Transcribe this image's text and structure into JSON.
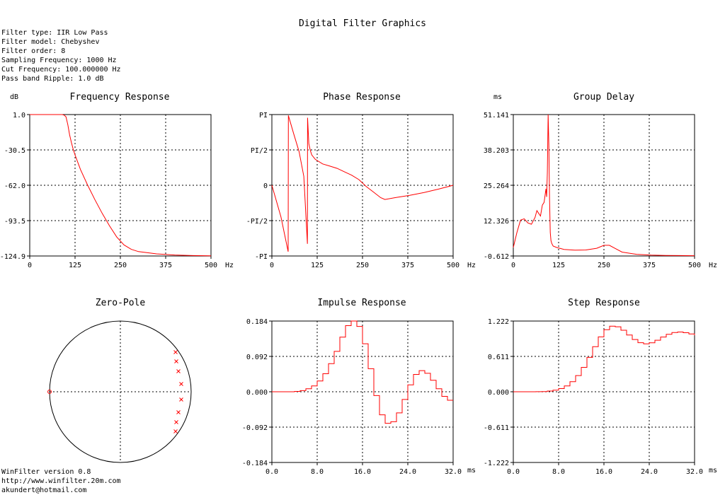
{
  "app": {
    "title": "Digital Filter Graphics",
    "info_lines": [
      "Filter type: IIR Low Pass",
      "Filter model: Chebyshev",
      "Filter order: 8",
      "Sampling Frequency: 1000 Hz",
      "Cut Frequency: 100.000000 Hz",
      "Pass band Ripple: 1.0 dB"
    ],
    "footer_lines": [
      "WinFilter version 0.8",
      "http://www.winfilter.20m.com",
      "akundert@hotmail.com"
    ]
  },
  "colors": {
    "trace": "#ff0000",
    "axes": "#000000"
  },
  "chart_data": [
    {
      "id": "freq",
      "type": "line",
      "title": "Frequency Response",
      "ylabel": "dB",
      "xlabel": "Hz",
      "xlim": [
        0,
        500
      ],
      "ylim": [
        -124.9,
        1.0
      ],
      "xticks": [
        "0",
        "125",
        "250",
        "375",
        "500"
      ],
      "yticks": [
        "1.0",
        "-30.5",
        "-62.0",
        "-93.5",
        "-124.9"
      ],
      "grid": true,
      "series": [
        {
          "x": [
            0,
            25,
            50,
            75,
            90,
            95,
            100,
            105,
            110,
            115,
            120,
            125,
            140,
            160,
            180,
            200,
            220,
            240,
            260,
            280,
            300,
            350,
            400,
            450,
            500
          ],
          "y": [
            1.0,
            1.0,
            1.0,
            1.0,
            1.0,
            0.5,
            -1.0,
            -8.0,
            -17.0,
            -24.0,
            -30.0,
            -35.0,
            -48.0,
            -62.0,
            -75.0,
            -87.0,
            -98.0,
            -108.0,
            -115.0,
            -119.0,
            -121.0,
            -123.0,
            -124.0,
            -124.5,
            -124.7
          ]
        }
      ]
    },
    {
      "id": "phase",
      "type": "line",
      "title": "Phase Response",
      "ylabel": "",
      "xlabel": "Hz",
      "xlim": [
        0,
        500
      ],
      "ylim": [
        -3.1416,
        3.1416
      ],
      "xticks": [
        "0",
        "125",
        "250",
        "375",
        "500"
      ],
      "yticks": [
        "PI",
        "PI/2",
        "0",
        "-PI/2",
        "-PI"
      ],
      "grid": true,
      "series": [
        {
          "x": [
            0,
            25,
            45,
            45.5,
            60,
            75,
            88,
            98,
            98.5,
            102,
            106,
            110,
            120,
            140,
            160,
            180,
            200,
            220,
            240,
            260,
            280,
            300,
            312,
            340,
            380,
            420,
            460,
            500
          ],
          "y": [
            0,
            -1.4,
            -2.95,
            3.1,
            2.3,
            1.5,
            0.4,
            -2.6,
            3.0,
            1.85,
            1.55,
            1.35,
            1.15,
            0.95,
            0.85,
            0.75,
            0.6,
            0.45,
            0.25,
            -0.05,
            -0.3,
            -0.55,
            -0.63,
            -0.55,
            -0.45,
            -0.32,
            -0.17,
            0.0
          ]
        }
      ]
    },
    {
      "id": "group",
      "type": "line",
      "title": "Group Delay",
      "ylabel": "ms",
      "xlabel": "Hz",
      "xlim": [
        0,
        500
      ],
      "ylim": [
        -0.612,
        51.141
      ],
      "xticks": [
        "0",
        "125",
        "250",
        "375",
        "500"
      ],
      "yticks": [
        "51.141",
        "38.203",
        "25.264",
        "12.326",
        "-0.612"
      ],
      "grid": true,
      "series": [
        {
          "x": [
            0,
            10,
            20,
            30,
            40,
            50,
            60,
            65,
            70,
            75,
            80,
            85,
            90,
            92,
            94,
            96,
            98,
            100,
            102,
            104,
            106,
            110,
            120,
            140,
            170,
            200,
            230,
            250,
            265,
            280,
            300,
            340,
            380,
            420,
            460,
            500
          ],
          "y": [
            2.5,
            8.0,
            12.5,
            13.0,
            11.5,
            11.0,
            13.5,
            16.0,
            15.0,
            14.0,
            18.0,
            19.0,
            24.0,
            21.0,
            30.0,
            51.141,
            40.0,
            20.0,
            8.0,
            5.0,
            4.0,
            3.0,
            2.5,
            1.8,
            1.5,
            1.6,
            2.2,
            3.3,
            3.3,
            2.2,
            0.8,
            0.0,
            -0.3,
            -0.4,
            -0.45,
            -0.5
          ]
        }
      ]
    },
    {
      "id": "zp",
      "type": "scatter",
      "title": "Zero-Pole",
      "zeros": [
        [
          -1.0,
          0.0
        ]
      ],
      "poles": [
        [
          0.78,
          0.56
        ],
        [
          0.79,
          0.43
        ],
        [
          0.82,
          0.29
        ],
        [
          0.86,
          0.11
        ],
        [
          0.86,
          -0.11
        ],
        [
          0.82,
          -0.29
        ],
        [
          0.79,
          -0.43
        ],
        [
          0.78,
          -0.56
        ]
      ]
    },
    {
      "id": "impulse",
      "type": "line",
      "title": "Impulse Response",
      "ylabel": "",
      "xlabel": "ms",
      "xlim": [
        0,
        32
      ],
      "ylim": [
        -0.184,
        0.184
      ],
      "xticks": [
        "0.0",
        "8.0",
        "16.0",
        "24.0",
        "32.0"
      ],
      "yticks": [
        "0.184",
        "0.092",
        "0.000",
        "-0.092",
        "-0.184"
      ],
      "grid": true,
      "steps": true,
      "series": [
        {
          "x": [
            0,
            1,
            2,
            3,
            4,
            5,
            6,
            7,
            8,
            9,
            10,
            11,
            12,
            13,
            14,
            15,
            16,
            17,
            18,
            19,
            20,
            21,
            22,
            23,
            24,
            25,
            26,
            27,
            28,
            29,
            30,
            31,
            32
          ],
          "y": [
            0.0,
            0.0,
            0.0,
            0.0,
            0.001,
            0.003,
            0.008,
            0.015,
            0.028,
            0.047,
            0.073,
            0.105,
            0.142,
            0.172,
            0.184,
            0.17,
            0.125,
            0.06,
            -0.01,
            -0.06,
            -0.082,
            -0.078,
            -0.055,
            -0.02,
            0.018,
            0.045,
            0.055,
            0.048,
            0.03,
            0.008,
            -0.012,
            -0.022,
            -0.022
          ]
        }
      ]
    },
    {
      "id": "step",
      "type": "line",
      "title": "Step Response",
      "ylabel": "",
      "xlabel": "ms",
      "xlim": [
        0,
        32
      ],
      "ylim": [
        -1.222,
        1.222
      ],
      "xticks": [
        "0.0",
        "8.0",
        "16.0",
        "24.0",
        "32.0"
      ],
      "yticks": [
        "1.222",
        "0.611",
        "0.000",
        "-0.611",
        "-1.222"
      ],
      "grid": true,
      "steps": true,
      "series": [
        {
          "x": [
            0,
            1,
            2,
            3,
            4,
            5,
            6,
            7,
            8,
            9,
            10,
            11,
            12,
            13,
            14,
            15,
            16,
            17,
            18,
            19,
            20,
            21,
            22,
            23,
            24,
            25,
            26,
            27,
            28,
            29,
            30,
            31,
            32
          ],
          "y": [
            0.0,
            0.0,
            0.0,
            0.0,
            0.001,
            0.004,
            0.012,
            0.027,
            0.055,
            0.102,
            0.175,
            0.28,
            0.422,
            0.594,
            0.778,
            0.948,
            1.073,
            1.133,
            1.123,
            1.063,
            0.981,
            0.903,
            0.848,
            0.828,
            0.846,
            0.891,
            0.946,
            0.994,
            1.024,
            1.032,
            1.02,
            0.998,
            0.976
          ]
        }
      ]
    }
  ]
}
